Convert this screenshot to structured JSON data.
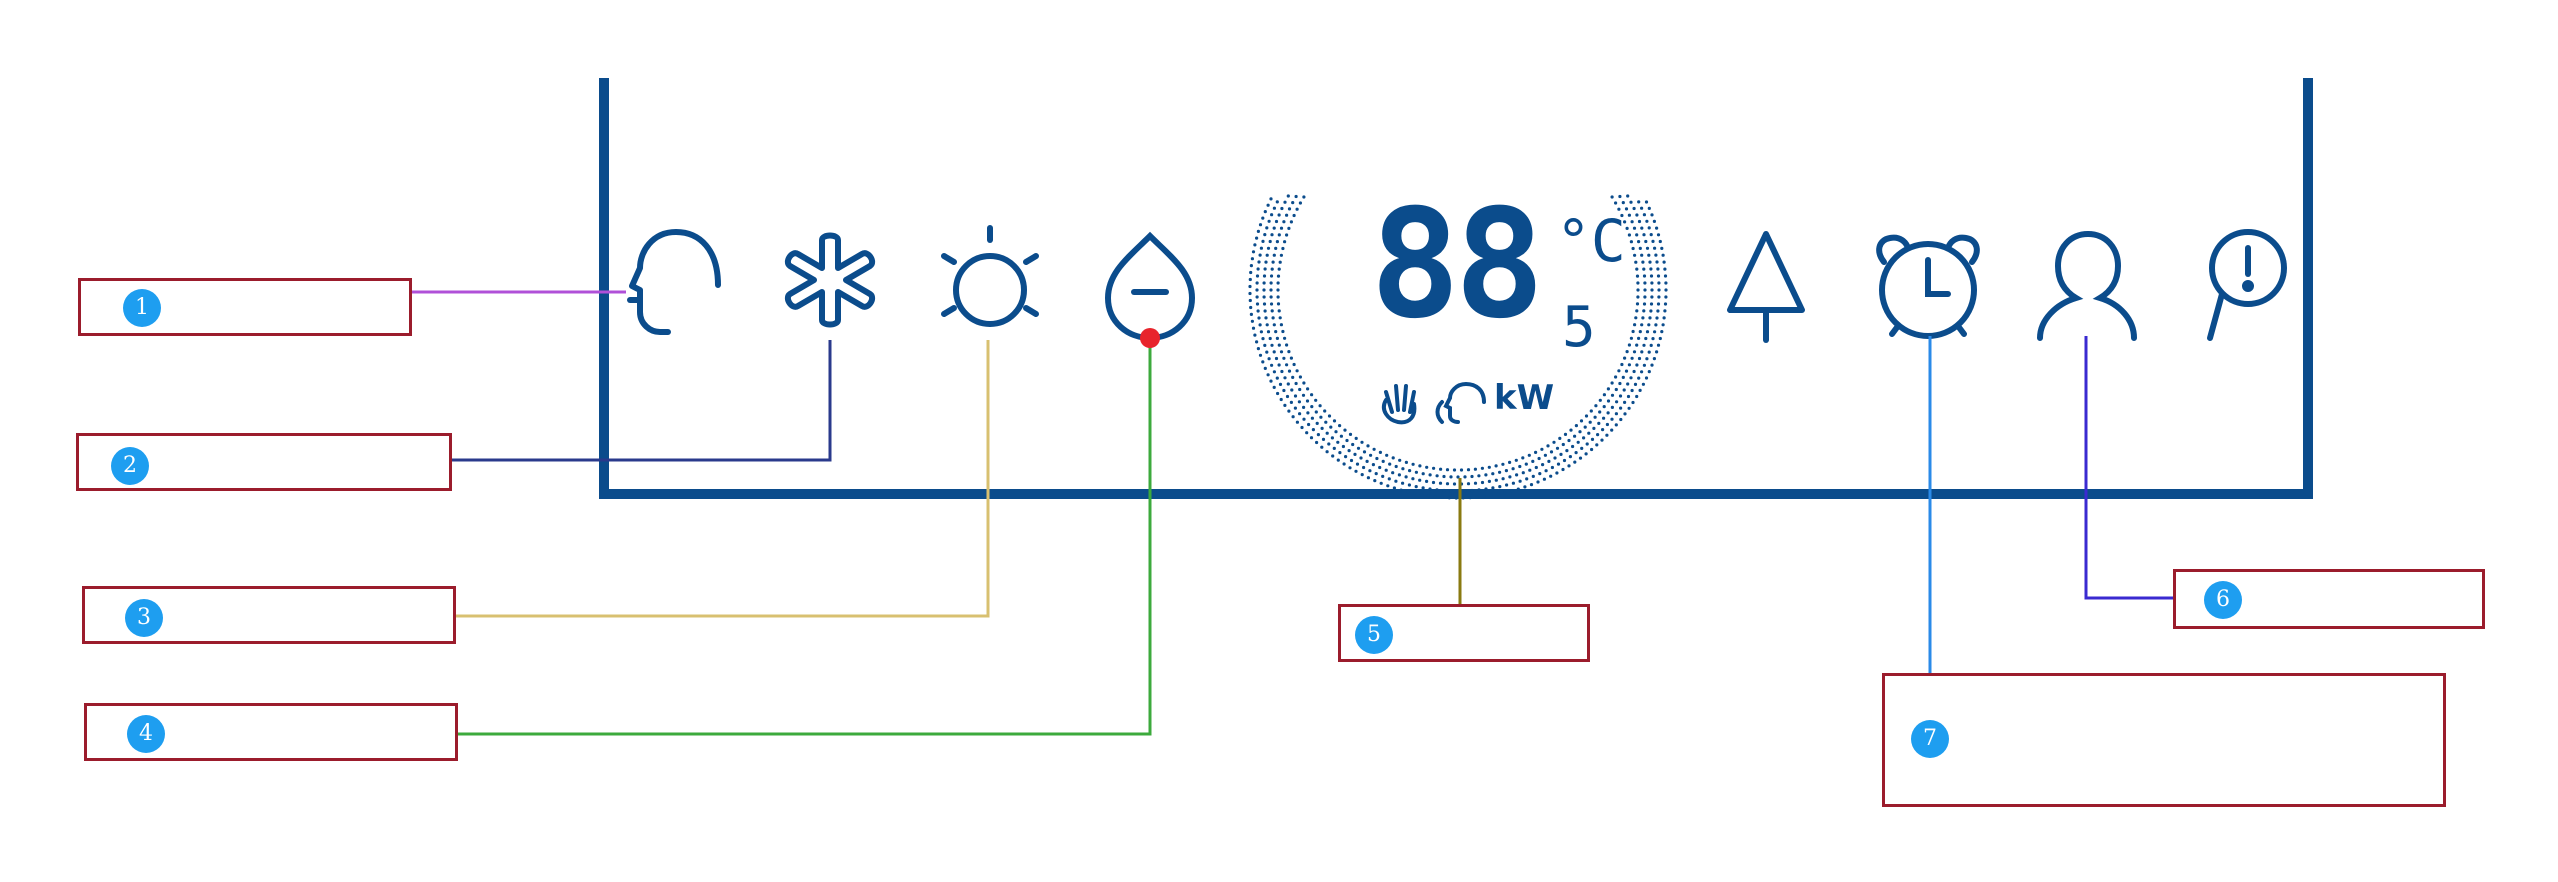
{
  "colors": {
    "panel_blue": "#0b4c8c",
    "box_border": "#9b1c2c",
    "badge_blue": "#1e9ef0",
    "line_1": "#b050d8",
    "line_2": "#2a3a8c",
    "line_3": "#d8c070",
    "line_4": "#3caa3c",
    "line_5": "#8a7a10",
    "line_6": "#3a2ad0",
    "line_7": "#2a8ae8",
    "dot_red": "#e8242c"
  },
  "display": {
    "main_digits": "88",
    "sub_digit": "5",
    "unit": "°C",
    "power_unit": "kW"
  },
  "icons": [
    "head-profile-icon",
    "snowflake-icon",
    "sun-icon",
    "water-drop-minus-icon",
    "tree-icon",
    "alarm-clock-icon",
    "person-icon",
    "magnifier-alert-icon",
    "hand-icon",
    "voice-icon"
  ],
  "callouts": [
    {
      "num": "1"
    },
    {
      "num": "2"
    },
    {
      "num": "3"
    },
    {
      "num": "4"
    },
    {
      "num": "5"
    },
    {
      "num": "6"
    },
    {
      "num": "7"
    }
  ]
}
